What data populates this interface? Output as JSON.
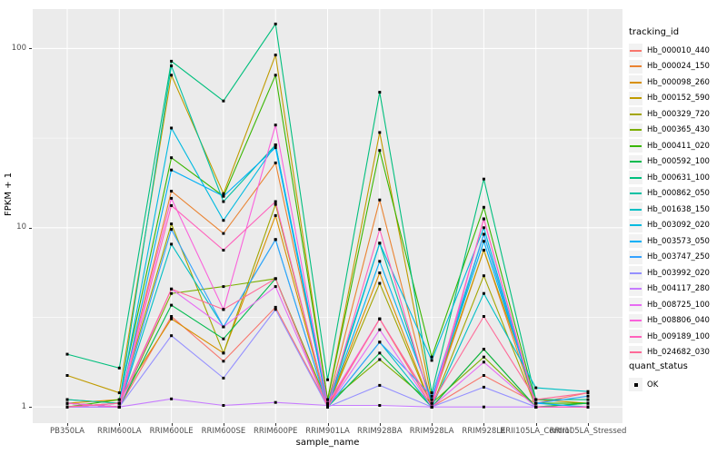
{
  "figure": {
    "background": "#FFFFFF",
    "panel_bg": "#EBEBEB",
    "grid_color": "#FFFFFF",
    "tick_color": "#333333",
    "tick_text_color": "#4D4D4D",
    "point_color": "#000000"
  },
  "axes": {
    "x_label": "sample_name",
    "y_label": "FPKM + 1",
    "y_tick_labels": [
      "1",
      "10",
      "100"
    ]
  },
  "legends": {
    "tracking_id": {
      "title": "tracking_id"
    },
    "quant_status": {
      "title": "quant_status",
      "items": [
        {
          "label": "OK"
        }
      ]
    }
  },
  "chart_data": {
    "type": "line",
    "title": "",
    "xlabel": "sample_name",
    "ylabel": "FPKM + 1",
    "y_scale": "log10",
    "y_ticks": [
      1,
      10,
      100
    ],
    "y_minor_ticks": [
      3.162,
      31.62
    ],
    "ylim": [
      0.81,
      166
    ],
    "ylim_log": [
      -0.09,
      2.22
    ],
    "grid": true,
    "legend_position": "right",
    "categories": [
      "PB350LA",
      "RRIM600LA",
      "RRIM600LE",
      "RRIM600SE",
      "RRIM600PE",
      "RRIM901LA",
      "RRIM928BA",
      "RRIM928LA",
      "RRIM928LE",
      "RRII105LA_Control",
      "RRII105LA_Stressed"
    ],
    "series": [
      {
        "name": "Hb_000010_440",
        "color": "#F8766D",
        "values": [
          1.05,
          1.0,
          3.2,
          1.8,
          3.6,
          1.02,
          3.1,
          1.0,
          1.5,
          1.05,
          1.2
        ]
      },
      {
        "name": "Hb_000024_150",
        "color": "#EA8331",
        "values": [
          1.1,
          1.05,
          16.0,
          9.3,
          23.0,
          1.05,
          14.3,
          1.05,
          7.5,
          1.0,
          1.0
        ]
      },
      {
        "name": "Hb_000098_260",
        "color": "#D89000",
        "values": [
          1.05,
          1.1,
          3.1,
          2.0,
          11.7,
          1.0,
          5.6,
          1.0,
          2.1,
          1.0,
          1.05
        ]
      },
      {
        "name": "Hb_000152_590",
        "color": "#C09B00",
        "values": [
          1.5,
          1.2,
          71.0,
          15.5,
          92.0,
          1.1,
          34.0,
          1.1,
          7.5,
          1.1,
          1.05
        ]
      },
      {
        "name": "Hb_000329_720",
        "color": "#A3A500",
        "values": [
          1.0,
          1.05,
          10.5,
          2.0,
          13.5,
          1.0,
          4.9,
          1.0,
          5.4,
          1.0,
          1.0
        ]
      },
      {
        "name": "Hb_000365_430",
        "color": "#7CAE00",
        "values": [
          1.05,
          1.0,
          4.3,
          4.7,
          5.2,
          1.05,
          1.84,
          1.05,
          1.9,
          1.0,
          1.0
        ]
      },
      {
        "name": "Hb_000411_020",
        "color": "#39B600",
        "values": [
          1.0,
          1.1,
          24.6,
          15.0,
          71.0,
          1.1,
          27.0,
          1.9,
          13.0,
          1.05,
          1.05
        ]
      },
      {
        "name": "Hb_000592_100",
        "color": "#00BB4E",
        "values": [
          1.05,
          1.0,
          3.7,
          2.4,
          5.2,
          1.0,
          2.0,
          1.0,
          2.1,
          1.0,
          1.05
        ]
      },
      {
        "name": "Hb_000631_100",
        "color": "#00BF7D",
        "values": [
          1.97,
          1.65,
          85.0,
          51.0,
          137.0,
          1.42,
          57.0,
          1.2,
          18.7,
          1.1,
          1.1
        ]
      },
      {
        "name": "Hb_000862_050",
        "color": "#00C1A3",
        "values": [
          1.1,
          1.05,
          80.0,
          14.0,
          29.0,
          1.0,
          8.2,
          1.05,
          9.2,
          1.0,
          1.0
        ]
      },
      {
        "name": "Hb_001638_150",
        "color": "#00BFC4",
        "values": [
          1.05,
          1.0,
          8.1,
          2.8,
          8.6,
          1.0,
          2.3,
          1.0,
          4.3,
          1.28,
          1.22
        ]
      },
      {
        "name": "Hb_003092_020",
        "color": "#00BAE0",
        "values": [
          1.0,
          1.05,
          36.0,
          11.0,
          29.0,
          1.05,
          8.2,
          1.82,
          10.0,
          1.0,
          1.0
        ]
      },
      {
        "name": "Hb_003573_050",
        "color": "#00B0F6",
        "values": [
          1.05,
          1.0,
          21.0,
          15.0,
          28.0,
          1.0,
          6.5,
          1.1,
          8.4,
          1.05,
          1.0
        ]
      },
      {
        "name": "Hb_003747_250",
        "color": "#35A2FF",
        "values": [
          1.0,
          1.0,
          9.8,
          2.8,
          8.6,
          1.0,
          2.3,
          1.15,
          9.2,
          1.05,
          1.15
        ]
      },
      {
        "name": "Hb_003992_020",
        "color": "#9590FF",
        "values": [
          1.0,
          1.0,
          2.5,
          1.45,
          3.5,
          1.0,
          1.32,
          1.0,
          1.29,
          1.0,
          1.0
        ]
      },
      {
        "name": "Hb_004117_280",
        "color": "#C77CFF",
        "values": [
          1.0,
          1.0,
          1.11,
          1.02,
          1.06,
          1.02,
          1.02,
          1.0,
          1.0,
          1.0,
          1.0
        ]
      },
      {
        "name": "Hb_008725_100",
        "color": "#E76BF3",
        "values": [
          1.05,
          1.0,
          4.55,
          2.8,
          4.7,
          1.0,
          2.7,
          1.0,
          1.78,
          1.0,
          1.0
        ]
      },
      {
        "name": "Hb_008806_040",
        "color": "#FA62DB",
        "values": [
          1.0,
          1.05,
          14.6,
          3.5,
          37.4,
          1.05,
          3.1,
          1.05,
          11.2,
          1.0,
          1.0
        ]
      },
      {
        "name": "Hb_009189_100",
        "color": "#FF62BC",
        "values": [
          1.05,
          1.0,
          13.3,
          7.5,
          14.0,
          1.0,
          9.8,
          1.0,
          11.2,
          1.0,
          1.0
        ]
      },
      {
        "name": "Hb_024682_030",
        "color": "#FF6A98",
        "values": [
          1.0,
          1.05,
          4.55,
          3.5,
          5.2,
          1.0,
          3.1,
          1.05,
          3.2,
          1.1,
          1.2
        ]
      }
    ]
  }
}
